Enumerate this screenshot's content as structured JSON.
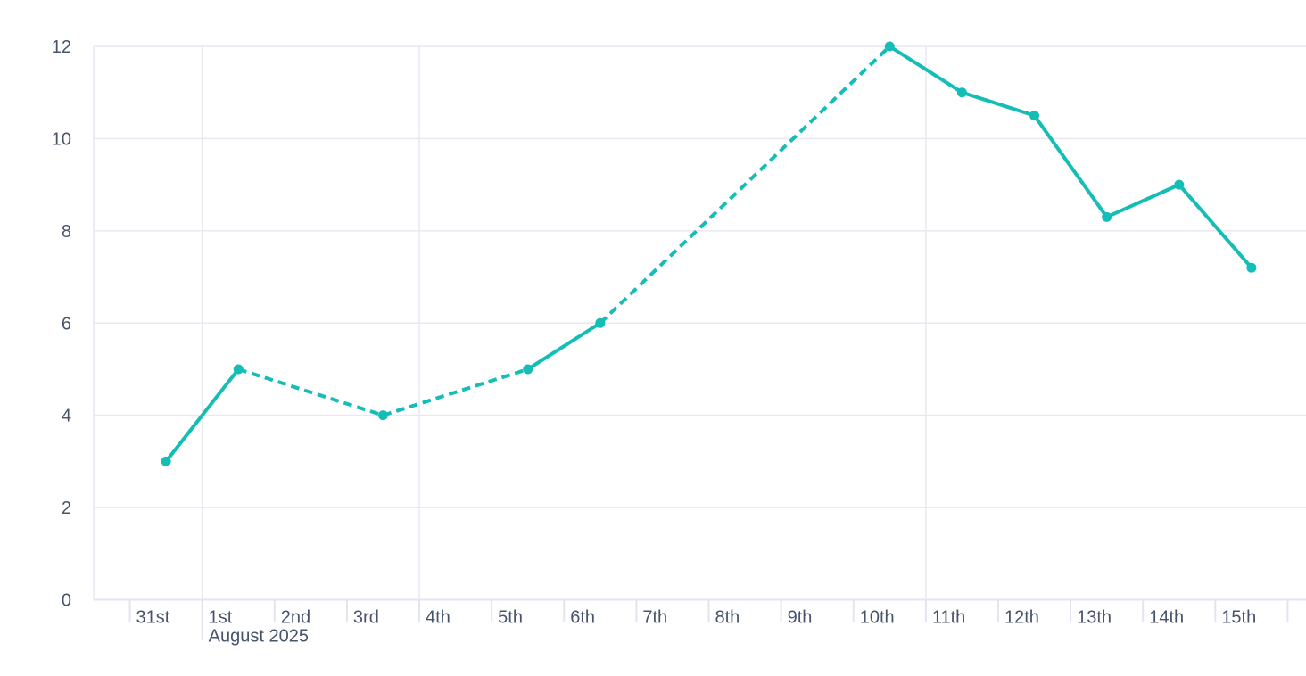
{
  "chart_data": {
    "type": "line",
    "title": "",
    "x_axis": {
      "tick_labels": [
        "31st",
        "1st",
        "2nd",
        "3rd",
        "4th",
        "5th",
        "6th",
        "7th",
        "8th",
        "9th",
        "10th",
        "11th",
        "12th",
        "13th",
        "14th",
        "15th"
      ],
      "month_label": "August 2025",
      "month_label_at": "1st",
      "vertical_gridlines_at": [
        "1st",
        "4th",
        "11th"
      ]
    },
    "y_axis": {
      "ticks": [
        0,
        2,
        4,
        6,
        8,
        10,
        12
      ],
      "range": [
        0,
        12
      ]
    },
    "grid": true,
    "legend": "none",
    "series": [
      {
        "name": "daily-values",
        "color": "#14BDB6",
        "marker": "circle",
        "style_note": "segments that span missing days are dashed",
        "points": [
          {
            "date": "31st",
            "value": 3
          },
          {
            "date": "1st",
            "value": 5
          },
          {
            "date": "3rd",
            "value": 4
          },
          {
            "date": "5th",
            "value": 5
          },
          {
            "date": "6th",
            "value": 6
          },
          {
            "date": "10th",
            "value": 12
          },
          {
            "date": "11th",
            "value": 11
          },
          {
            "date": "12th",
            "value": 10.5
          },
          {
            "date": "13th",
            "value": 8.3
          },
          {
            "date": "14th",
            "value": 9
          },
          {
            "date": "15th",
            "value": 7.2
          }
        ]
      }
    ],
    "colors": {
      "line": "#14BDB6",
      "grid": "#E7E9F2",
      "axis": "#E2E5F0",
      "label": "#47546B",
      "background": "#FFFFFF"
    }
  }
}
